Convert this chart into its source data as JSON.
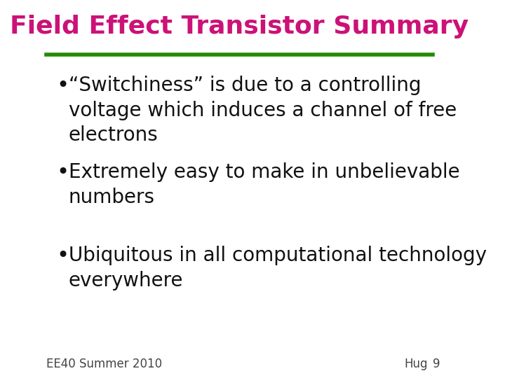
{
  "title": "Field Effect Transistor Summary",
  "title_color": "#CC1177",
  "title_fontsize": 26,
  "title_bold": true,
  "separator_color": "#228B00",
  "separator_linewidth": 4,
  "bullet_points": [
    "“Switchiness” is due to a controlling\nvoltage which induces a channel of free\nelectrons",
    "Extremely easy to make in unbelievable\nnumbers",
    "Ubiquitous in all computational technology\neverywhere"
  ],
  "bullet_fontsize": 20,
  "bullet_color": "#111111",
  "footer_left": "EE40 Summer 2010",
  "footer_right": "Hug",
  "footer_page": "9",
  "footer_fontsize": 12,
  "footer_color": "#444444",
  "background_color": "#ffffff"
}
